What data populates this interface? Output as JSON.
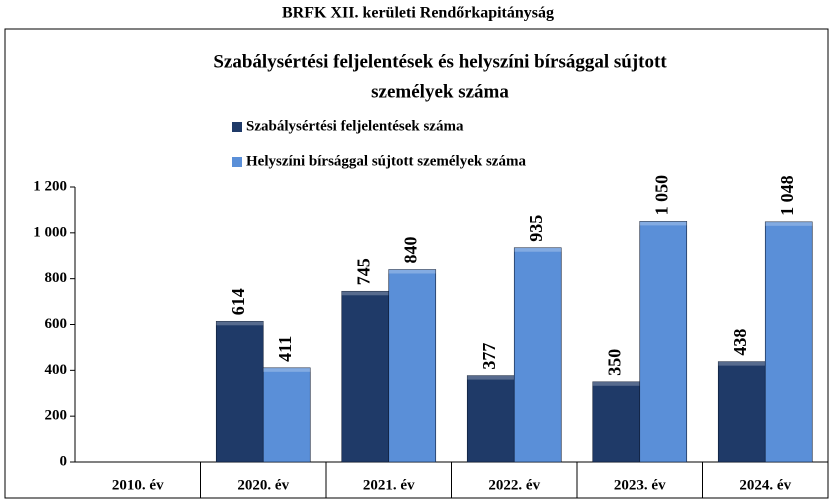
{
  "header": {
    "title": "BRFK XII. kerületi Rendőrkapitányság"
  },
  "chart_data": {
    "type": "bar",
    "title": [
      "Szabálysértési feljelentések és helyszíni bírsággal sújtott",
      "személyek száma"
    ],
    "categories": [
      "2010. év",
      "2020. év",
      "2021. év",
      "2022. év",
      "2023. év",
      "2024. év"
    ],
    "series": [
      {
        "name": "Szabálysértési feljelentések száma",
        "color": "#1f3a68",
        "values": [
          null,
          614,
          745,
          377,
          350,
          438
        ],
        "value_labels": [
          null,
          "614",
          "745",
          "377",
          "350",
          "438"
        ]
      },
      {
        "name": "Helyszíni bírsággal sújtott személyek száma",
        "color": "#5a8fd8",
        "values": [
          null,
          411,
          840,
          935,
          1050,
          1048
        ],
        "value_labels": [
          null,
          "411",
          "840",
          "935",
          "1 050",
          "1 048"
        ]
      }
    ],
    "ylim": [
      0,
      1200
    ],
    "yticks": [
      0,
      200,
      400,
      600,
      800,
      {
        "value": 1000,
        "label": "1 000"
      },
      {
        "value": 1200,
        "label": "1 200"
      }
    ]
  }
}
